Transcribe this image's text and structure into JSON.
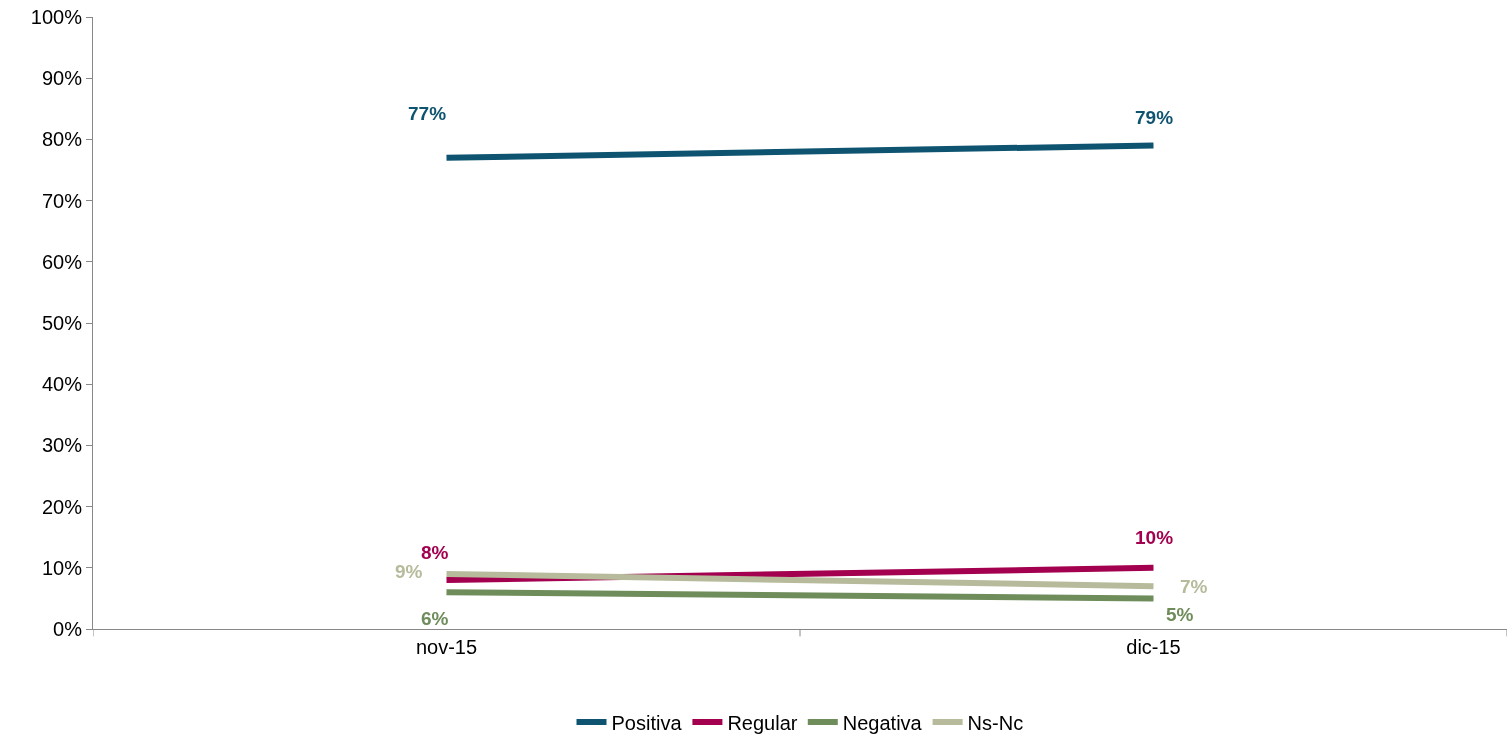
{
  "chart_data": {
    "type": "line",
    "categories": [
      "nov-15",
      "dic-15"
    ],
    "series": [
      {
        "name": "Positiva",
        "color": "#0e5470",
        "values": [
          77,
          79
        ],
        "value_labels": [
          "77%",
          "79%"
        ]
      },
      {
        "name": "Regular",
        "color": "#a3004f",
        "values": [
          8,
          10
        ],
        "value_labels": [
          "8%",
          "10%"
        ]
      },
      {
        "name": "Negativa",
        "color": "#6f8c5b",
        "values": [
          6,
          5
        ],
        "value_labels": [
          "6%",
          "5%"
        ]
      },
      {
        "name": "Ns-Nc",
        "color": "#b7bb9c",
        "values": [
          9,
          7
        ],
        "value_labels": [
          "9%",
          "7%"
        ]
      }
    ],
    "ylim": [
      0,
      100
    ],
    "yticks": [
      {
        "value": 0,
        "label": "0%"
      },
      {
        "value": 10,
        "label": "10%"
      },
      {
        "value": 20,
        "label": "20%"
      },
      {
        "value": 30,
        "label": "30%"
      },
      {
        "value": 40,
        "label": "40%"
      },
      {
        "value": 50,
        "label": "50%"
      },
      {
        "value": 60,
        "label": "60%"
      },
      {
        "value": 70,
        "label": "70%"
      },
      {
        "value": 80,
        "label": "80%"
      },
      {
        "value": 90,
        "label": "90%"
      },
      {
        "value": 100,
        "label": "100%"
      }
    ],
    "grid": false,
    "legend": "bottom",
    "marker": "none",
    "line_style": "solid"
  }
}
